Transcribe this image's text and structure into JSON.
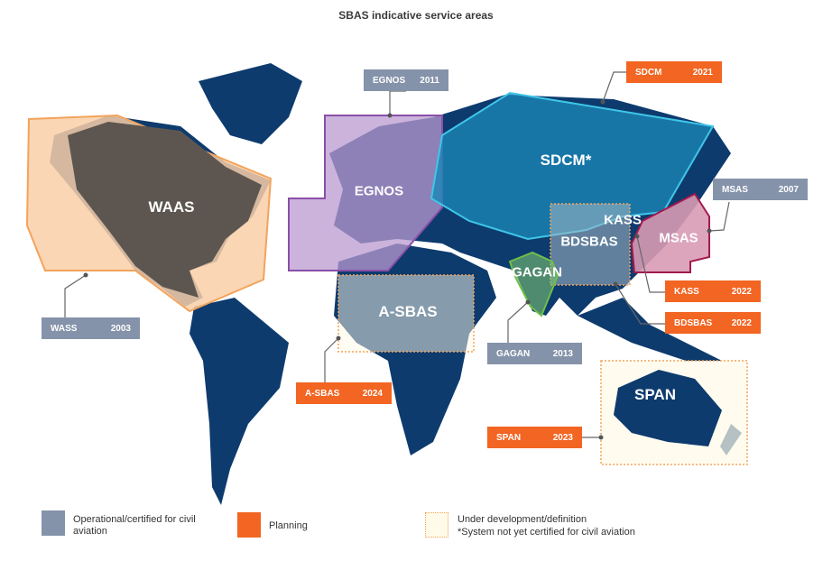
{
  "title": "SBAS indicative service areas",
  "colors": {
    "operational": "#8593aa",
    "planning": "#f26522",
    "under_development": "#fffbe8",
    "land": "#0d3b6e",
    "waas_area": "#f9cfa8",
    "egnos_area": "#b99ad0",
    "sdcm_area": "#1c86b5",
    "msas_area": "#d89bb4",
    "gagan_area": "#7cc26e"
  },
  "regions": [
    {
      "id": "waas",
      "label": "WAAS"
    },
    {
      "id": "egnos",
      "label": "EGNOS"
    },
    {
      "id": "sdcm",
      "label": "SDCM*"
    },
    {
      "id": "kass",
      "label": "KASS"
    },
    {
      "id": "bdsbas",
      "label": "BDSBAS"
    },
    {
      "id": "msas",
      "label": "MSAS"
    },
    {
      "id": "gagan",
      "label": "GAGAN"
    },
    {
      "id": "asbas",
      "label": "A-SBAS"
    },
    {
      "id": "span",
      "label": "SPAN"
    }
  ],
  "callouts": [
    {
      "name": "EGNOS",
      "year": "2011",
      "status": "operational"
    },
    {
      "name": "SDCM",
      "year": "2021",
      "status": "planning"
    },
    {
      "name": "MSAS",
      "year": "2007",
      "status": "operational"
    },
    {
      "name": "KASS",
      "year": "2022",
      "status": "planning"
    },
    {
      "name": "BDSBAS",
      "year": "2022",
      "status": "planning"
    },
    {
      "name": "GAGAN",
      "year": "2013",
      "status": "operational"
    },
    {
      "name": "WASS",
      "year": "2003",
      "status": "operational"
    },
    {
      "name": "A-SBAS",
      "year": "2024",
      "status": "planning"
    },
    {
      "name": "SPAN",
      "year": "2023",
      "status": "planning"
    }
  ],
  "legend": {
    "operational": "Operational/certified for civil aviation",
    "planning": "Planning",
    "under_development": "Under development/definition",
    "footnote": "*System not yet certified for civil aviation"
  }
}
